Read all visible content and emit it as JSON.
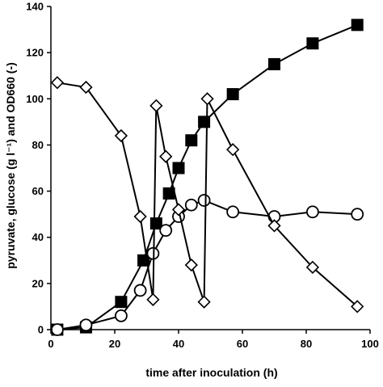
{
  "chart_data": {
    "type": "line",
    "title": "",
    "xlabel": "time after inoculation (h)",
    "ylabel": "pyruvate, glucose (g l⁻¹) and OD660 (-)",
    "xlim": [
      0,
      100
    ],
    "ylim": [
      0,
      140
    ],
    "x_ticks": [
      "0",
      "20",
      "40",
      "60",
      "80",
      "100"
    ],
    "y_ticks": [
      "0",
      "20",
      "40",
      "60",
      "80",
      "100",
      "120",
      "140"
    ],
    "grid": false,
    "legend": "none",
    "series": [
      {
        "marker": "filled-square",
        "color": "#000000",
        "x": [
          2,
          11,
          22,
          29,
          33,
          37,
          40,
          44,
          48,
          57,
          70,
          82,
          96
        ],
        "y": [
          0,
          1,
          12,
          30,
          46,
          59,
          70,
          82,
          90,
          102,
          115,
          124,
          132
        ]
      },
      {
        "marker": "open-circle",
        "color": "#000000",
        "x": [
          2,
          11,
          22,
          28,
          32,
          36,
          40,
          44,
          48,
          57,
          70,
          82,
          96
        ],
        "y": [
          0,
          2,
          6,
          17,
          33,
          43,
          49,
          54,
          56,
          51,
          49,
          51,
          50
        ]
      },
      {
        "marker": "open-diamond",
        "color": "#000000",
        "x": [
          2,
          11,
          22,
          28,
          32,
          33,
          36,
          40,
          44,
          48,
          49,
          57,
          70,
          82,
          96
        ],
        "y": [
          107,
          105,
          84,
          49,
          13,
          97,
          75,
          52,
          28,
          12,
          100,
          78,
          45,
          27,
          10
        ]
      }
    ]
  }
}
